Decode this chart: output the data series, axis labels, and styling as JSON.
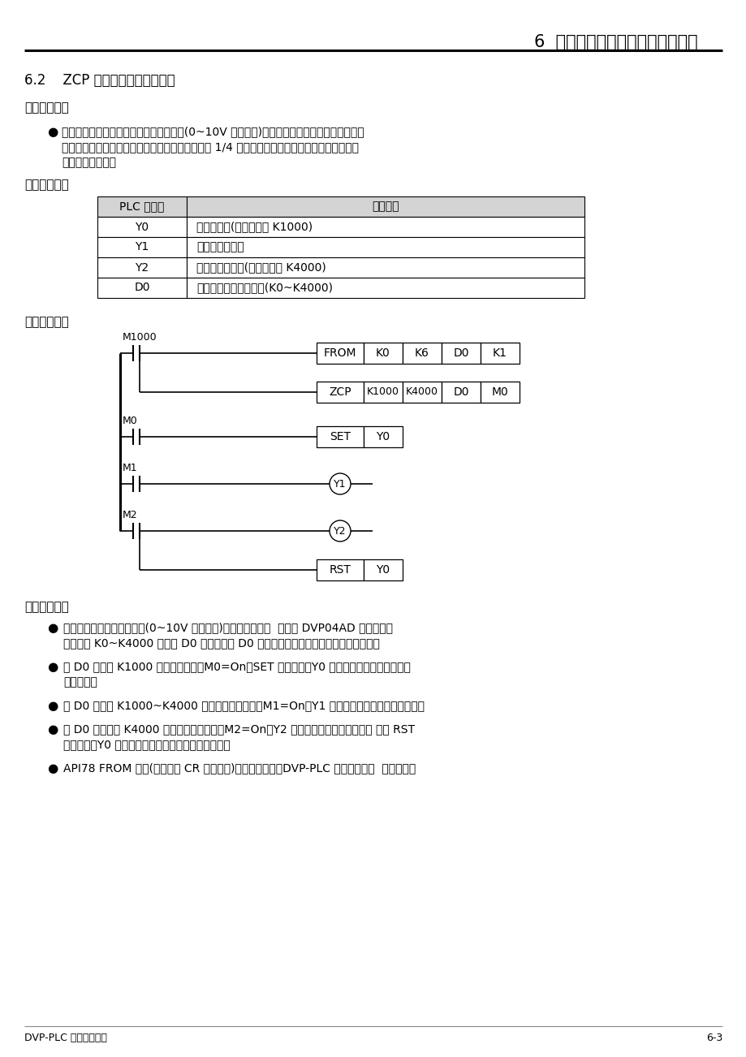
{
  "title": "6  应用指令传送比较控制设计范例",
  "section": "6.2    ZCP 水塔水位高度警示控制",
  "ctrl_req": "【控制要求】",
  "bullet1_line1": "大型公用水塔利用模拟式液位高度测量仪(0~10V 电压输出)测量水位高度，进行水位的控制。",
  "bullet1_line2": "水位处于正常高度时，水位正常指示灯亮，水塔剩 1/4 水量时进行给水动作，水位到达上限时，",
  "bullet1_line3": "报警并停止给水。",
  "yuanjian": "【元件说明】",
  "table_header": [
    "PLC 软元件",
    "控制说明"
  ],
  "table_rows": [
    [
      "Y0",
      "给水阀开关(下限设置値 K1000)"
    ],
    [
      "Y1",
      "水位正常指示灯"
    ],
    [
      "Y2",
      "水位到达警报器(上限设置値 K4000)"
    ],
    [
      "D0",
      "模拟式液位高度测量値(K0~K4000)"
    ]
  ],
  "ctrl_prog": "【控制程序】",
  "prog_shuoming": "【程序说明】",
  "pb1l1": "利用模拟式液位高度测量仪(0~10V 电压输出)测量水位高度，  经台达 DVP04AD 扩充模块转",
  "pb1l2": "换成数値 K0~K4000 存放在 D0 中，通过对 D0 的値进行判断来控制水面处于正常高度。",
  "pb2l1": "当 D0 値小于 K1000 时，水位偏低，M0=On，SET 指令执行，Y0 被置位，给水阀开关打开，",
  "pb2l2": "开始给水。",
  "pb3": "当 D0 的値在 K1000~K4000 之间时，水位正常，M1=On，Y1 被导通，用水位正常指示灯亮。",
  "pb4l1": "当 D0 的値大于 K4000 时，水位到达上限，M2=On，Y2 被导通，水位到达警报器响 同时 RST",
  "pb4l2": "指令执行，Y0 被复位，给水阀开关关闭，停止给水。",
  "pb5": "API78 FROM 指令(特殊模块 CR 数据读出)的用法请参考《DVP-PLC 应用技术手册  程序篇》。",
  "footer_left": "DVP-PLC 应用技术手册",
  "footer_right": "6-3",
  "bg_color": "#ffffff",
  "table_header_bg": "#d4d4d4",
  "table_border": "#000000"
}
